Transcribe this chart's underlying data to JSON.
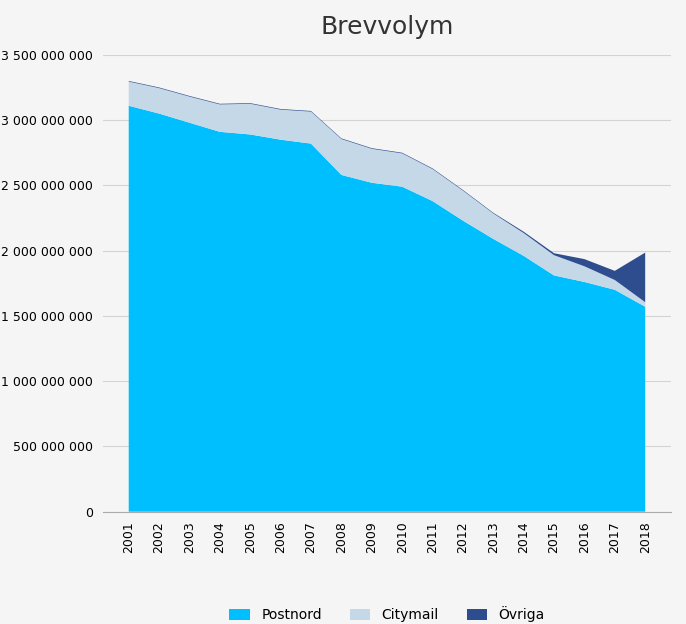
{
  "title": "Brevvolym",
  "years": [
    2001,
    2002,
    2003,
    2004,
    2005,
    2006,
    2007,
    2008,
    2009,
    2010,
    2011,
    2012,
    2013,
    2014,
    2015,
    2016,
    2017,
    2018
  ],
  "postnord": [
    3110000000,
    3050000000,
    2980000000,
    2910000000,
    2890000000,
    2850000000,
    2820000000,
    2580000000,
    2520000000,
    2490000000,
    2380000000,
    2230000000,
    2090000000,
    1960000000,
    1810000000,
    1760000000,
    1700000000,
    1570000000
  ],
  "citymail": [
    185000000,
    195000000,
    200000000,
    210000000,
    235000000,
    230000000,
    245000000,
    275000000,
    260000000,
    255000000,
    245000000,
    230000000,
    195000000,
    175000000,
    155000000,
    120000000,
    75000000,
    35000000
  ],
  "ovriga": [
    5000000,
    5000000,
    5000000,
    5000000,
    5000000,
    5000000,
    5000000,
    5000000,
    5000000,
    5000000,
    5000000,
    5000000,
    5000000,
    10000000,
    15000000,
    55000000,
    70000000,
    380000000
  ],
  "postnord_color": "#00BFFF",
  "citymail_color": "#C5D8E8",
  "ovriga_color": "#2E4D8E",
  "background_color": "#F5F5F5",
  "grid_color": "#D3D3D3",
  "ylim": [
    0,
    3500000000
  ],
  "ytick_step": 500000000,
  "legend_labels": [
    "Postnord",
    "Citymail",
    "Övriga"
  ],
  "title_fontsize": 18,
  "tick_fontsize": 9,
  "legend_fontsize": 10
}
